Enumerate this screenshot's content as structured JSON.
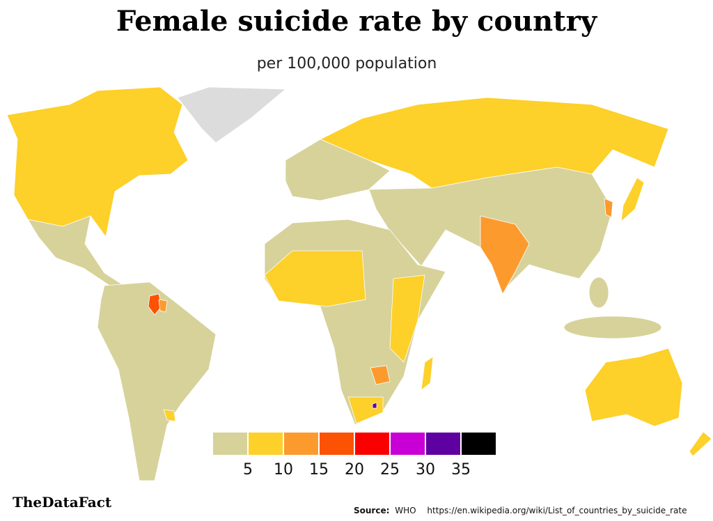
{
  "title": "Female suicide rate by country",
  "subtitle": "per 100,000 population",
  "legend": {
    "colors": [
      "#d6d29a",
      "#fdd02a",
      "#fd9a2e",
      "#fc5203",
      "#fb0000",
      "#c900d6",
      "#5f00a0",
      "#000000"
    ],
    "lim": [
      0,
      40
    ],
    "ticks": [
      5,
      10,
      15,
      20,
      25,
      30,
      35
    ]
  },
  "source": {
    "label": "Source:",
    "name": "WHO",
    "url": "https://en.wikipedia.org/wiki/List_of_countries_by_suicide_rate"
  },
  "brand": "TheDataFact"
}
